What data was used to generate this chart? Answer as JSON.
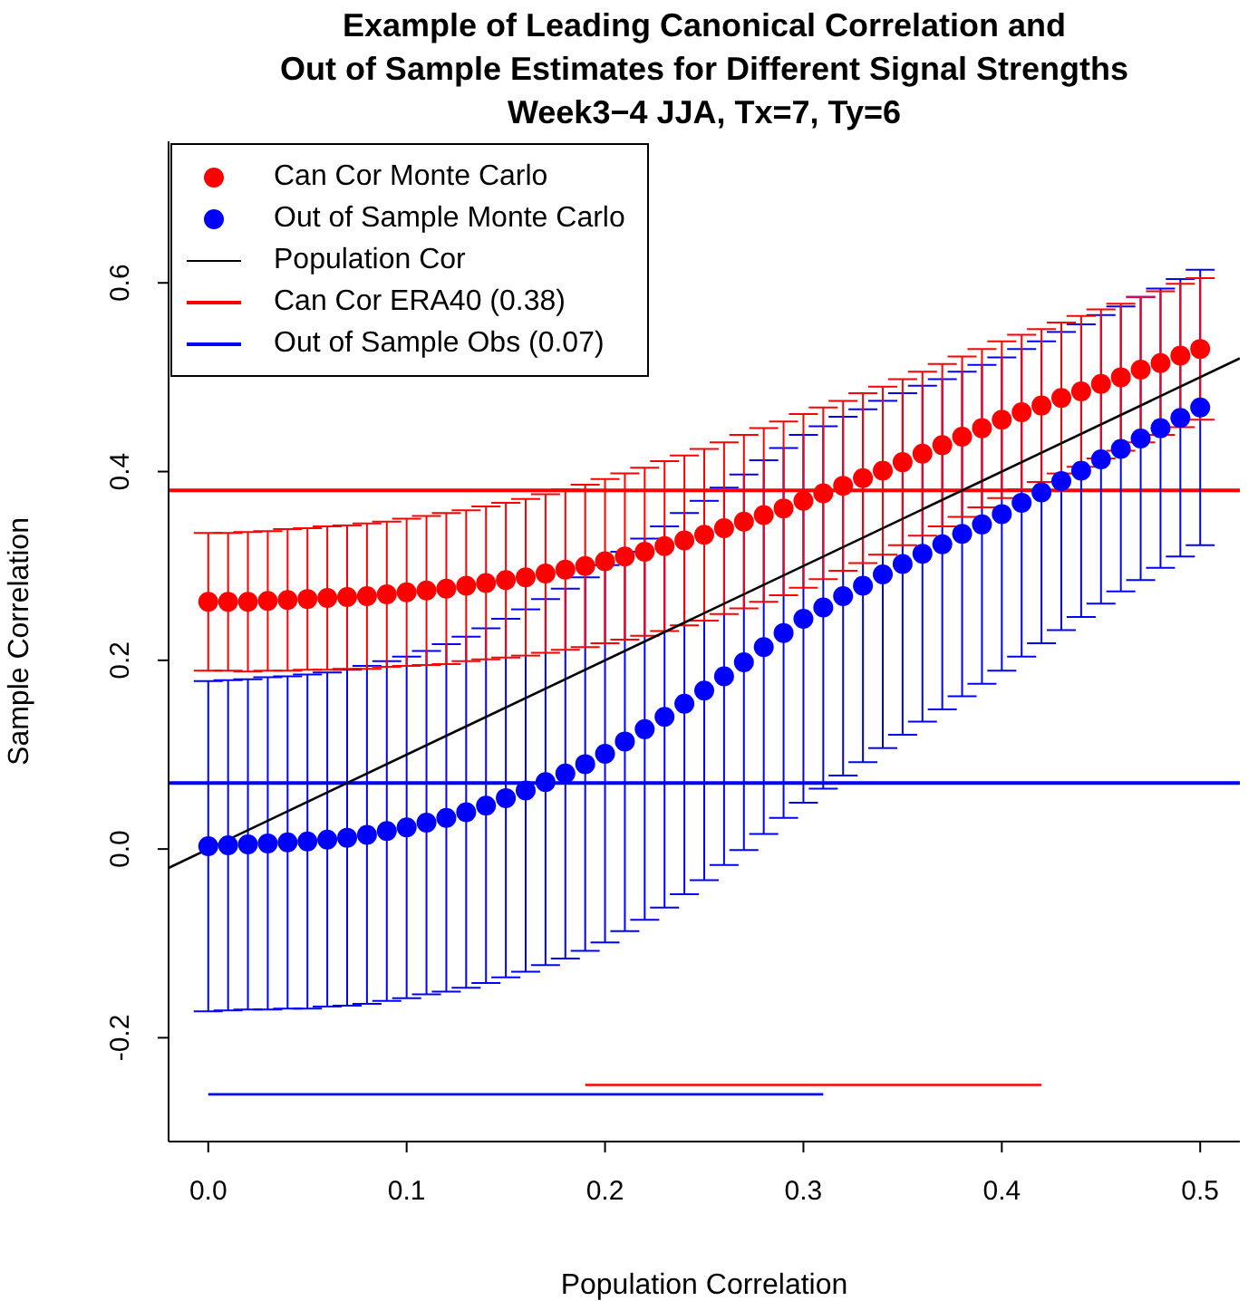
{
  "chart_data": {
    "type": "scatter",
    "title": "Example of Leading Canonical Correlation and\nOut of Sample Estimates for Different Signal Strengths\nWeek3−4 JJA, Tx=7, Ty=6",
    "xlabel": "Population Correlation",
    "ylabel": "Sample Correlation",
    "x": [
      0,
      0.01,
      0.02,
      0.03,
      0.04,
      0.05,
      0.06,
      0.07,
      0.08,
      0.09,
      0.1,
      0.11,
      0.12,
      0.13,
      0.14,
      0.15,
      0.16,
      0.17,
      0.18,
      0.19,
      0.2,
      0.21,
      0.22,
      0.23,
      0.24,
      0.25,
      0.26,
      0.27,
      0.28,
      0.29,
      0.3,
      0.31,
      0.32,
      0.33,
      0.34,
      0.35,
      0.36,
      0.37,
      0.38,
      0.39,
      0.4,
      0.41,
      0.42,
      0.43,
      0.44,
      0.45,
      0.46,
      0.47,
      0.48,
      0.49,
      0.5
    ],
    "series": [
      {
        "name": "Can Cor Monte Carlo",
        "color": "#ff0000",
        "marker": "circle",
        "values": [
          0.262,
          0.262,
          0.262,
          0.263,
          0.264,
          0.265,
          0.266,
          0.267,
          0.268,
          0.27,
          0.272,
          0.274,
          0.276,
          0.279,
          0.282,
          0.285,
          0.288,
          0.292,
          0.296,
          0.3,
          0.305,
          0.31,
          0.315,
          0.321,
          0.327,
          0.333,
          0.34,
          0.347,
          0.354,
          0.361,
          0.369,
          0.377,
          0.385,
          0.393,
          0.401,
          0.41,
          0.419,
          0.428,
          0.437,
          0.446,
          0.455,
          0.463,
          0.47,
          0.478,
          0.485,
          0.493,
          0.5,
          0.508,
          0.515,
          0.523,
          0.53
        ],
        "errors": [
          0.073,
          0.073,
          0.074,
          0.074,
          0.075,
          0.075,
          0.076,
          0.076,
          0.077,
          0.077,
          0.078,
          0.079,
          0.08,
          0.08,
          0.081,
          0.082,
          0.083,
          0.084,
          0.085,
          0.086,
          0.087,
          0.088,
          0.089,
          0.09,
          0.09,
          0.091,
          0.091,
          0.092,
          0.092,
          0.092,
          0.092,
          0.091,
          0.09,
          0.09,
          0.089,
          0.088,
          0.087,
          0.086,
          0.085,
          0.084,
          0.083,
          0.082,
          0.081,
          0.08,
          0.08,
          0.079,
          0.078,
          0.077,
          0.076,
          0.076,
          0.075
        ]
      },
      {
        "name": "Out of Sample Monte Carlo",
        "color": "#0000ff",
        "marker": "circle",
        "values": [
          0.003,
          0.004,
          0.005,
          0.006,
          0.007,
          0.008,
          0.01,
          0.012,
          0.015,
          0.019,
          0.023,
          0.028,
          0.033,
          0.039,
          0.046,
          0.054,
          0.062,
          0.071,
          0.08,
          0.09,
          0.101,
          0.114,
          0.127,
          0.14,
          0.154,
          0.168,
          0.183,
          0.198,
          0.214,
          0.229,
          0.244,
          0.256,
          0.268,
          0.279,
          0.291,
          0.302,
          0.313,
          0.323,
          0.334,
          0.344,
          0.355,
          0.367,
          0.378,
          0.39,
          0.401,
          0.413,
          0.424,
          0.435,
          0.446,
          0.457,
          0.468
        ],
        "errors": [
          0.175,
          0.175,
          0.175,
          0.176,
          0.176,
          0.177,
          0.177,
          0.178,
          0.179,
          0.18,
          0.181,
          0.182,
          0.184,
          0.186,
          0.188,
          0.19,
          0.192,
          0.194,
          0.196,
          0.198,
          0.2,
          0.201,
          0.202,
          0.202,
          0.202,
          0.201,
          0.2,
          0.199,
          0.198,
          0.196,
          0.195,
          0.192,
          0.19,
          0.187,
          0.184,
          0.181,
          0.178,
          0.175,
          0.172,
          0.169,
          0.166,
          0.163,
          0.16,
          0.158,
          0.155,
          0.153,
          0.151,
          0.15,
          0.148,
          0.147,
          0.146
        ]
      },
      {
        "name": "Population Cor",
        "type": "line",
        "color": "#000000",
        "x": [
          -0.02,
          0.52
        ],
        "values": [
          -0.02,
          0.52
        ]
      },
      {
        "type": "line",
        "color": "#ff0000",
        "x": [
          0.19,
          0.42
        ],
        "values": [
          -0.25,
          -0.25
        ]
      },
      {
        "type": "line",
        "color": "#0000ff",
        "x": [
          0,
          0.31
        ],
        "values": [
          -0.26,
          -0.26
        ]
      }
    ],
    "ref_lines": [
      {
        "axis": "y",
        "value": 0.38,
        "label": "Can Cor ERA40 (0.38)",
        "color": "#ff0000"
      },
      {
        "axis": "y",
        "value": 0.07,
        "label": "Out of Sample Obs (0.07)",
        "color": "#0000ff"
      }
    ],
    "xlim": [
      -0.02,
      0.52
    ],
    "xticks": [
      {
        "value": 0,
        "label": "0.0"
      },
      0.1,
      0.2,
      0.3,
      0.4,
      0.5
    ],
    "ylim": [
      -0.31,
      0.75
    ],
    "yticks": [
      -0.2,
      {
        "value": 0,
        "label": "0.0"
      },
      0.2,
      0.4,
      0.6
    ],
    "legend": "top left"
  }
}
